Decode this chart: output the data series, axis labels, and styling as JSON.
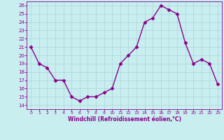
{
  "x": [
    0,
    1,
    2,
    3,
    4,
    5,
    6,
    7,
    8,
    9,
    10,
    11,
    12,
    13,
    14,
    15,
    16,
    17,
    18,
    19,
    20,
    21,
    22,
    23
  ],
  "y": [
    21,
    19,
    18.5,
    17,
    17,
    15,
    14.5,
    15,
    15,
    15.5,
    16,
    19,
    20,
    21,
    24,
    24.5,
    26,
    25.5,
    25,
    21.5,
    19,
    19.5,
    19,
    16.5
  ],
  "line_color": "#8B008B",
  "marker": "D",
  "marker_size": 2.5,
  "bg_color": "#c8eef0",
  "grid_color": "#b0d8da",
  "xlabel": "Windchill (Refroidissement éolien,°C)",
  "xlabel_color": "#8B008B",
  "tick_color": "#8B008B",
  "ylim": [
    13.5,
    26.5
  ],
  "xlim": [
    -0.5,
    23.5
  ],
  "yticks": [
    14,
    15,
    16,
    17,
    18,
    19,
    20,
    21,
    22,
    23,
    24,
    25,
    26
  ],
  "xticks": [
    0,
    1,
    2,
    3,
    4,
    5,
    6,
    7,
    8,
    9,
    10,
    11,
    12,
    13,
    14,
    15,
    16,
    17,
    18,
    19,
    20,
    21,
    22,
    23
  ],
  "line_width": 1.0
}
